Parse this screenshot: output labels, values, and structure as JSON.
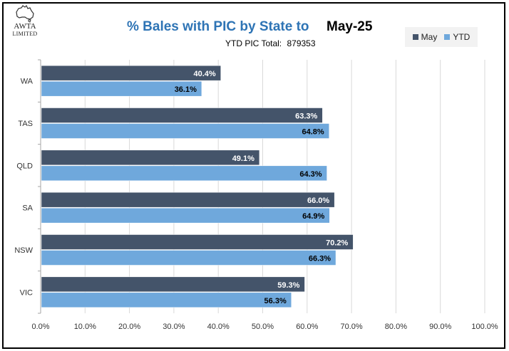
{
  "logo": {
    "brand": "AWTA",
    "sub": "LIMITED"
  },
  "title": "% Bales with PIC by State to",
  "month": "May-25",
  "subtitle_label": "YTD PIC Total:",
  "subtitle_value": "879353",
  "colors": {
    "may": "#44546a",
    "ytd": "#6fa8dc",
    "grid": "#d9d9d9",
    "title": "#2e74b5"
  },
  "chart_data": {
    "type": "bar",
    "orientation": "horizontal",
    "categories": [
      "WA",
      "TAS",
      "QLD",
      "SA",
      "NSW",
      "VIC"
    ],
    "series": [
      {
        "name": "May",
        "values": [
          40.4,
          63.3,
          49.1,
          66.0,
          70.2,
          59.3
        ],
        "labels": [
          "40.4%",
          "63.3%",
          "49.1%",
          "66.0%",
          "70.2%",
          "59.3%"
        ]
      },
      {
        "name": "YTD",
        "values": [
          36.1,
          64.8,
          64.3,
          64.9,
          66.3,
          56.3
        ],
        "labels": [
          "36.1%",
          "64.8%",
          "64.3%",
          "64.9%",
          "66.3%",
          "56.3%"
        ]
      }
    ],
    "xlim": [
      0,
      100
    ],
    "xticks": [
      "0.0%",
      "10.0%",
      "20.0%",
      "30.0%",
      "40.0%",
      "50.0%",
      "60.0%",
      "70.0%",
      "80.0%",
      "90.0%",
      "100.0%"
    ],
    "grid": true,
    "legend_position": "top-right"
  }
}
